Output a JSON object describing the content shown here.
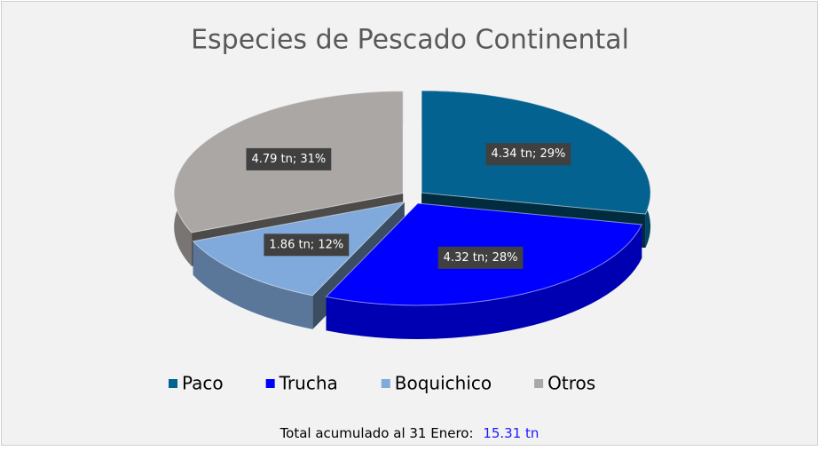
{
  "chart_data": {
    "type": "pie",
    "title": "Especies de Pescado Continental",
    "categories": [
      "Paco",
      "Trucha",
      "Boquichico",
      "Otros"
    ],
    "values": [
      4.34,
      4.32,
      1.86,
      4.79
    ],
    "value_labels": [
      "4.34 tn; 29%",
      "4.32 tn; 28%",
      "1.86 tn; 12%",
      "4.79 tn; 31%"
    ],
    "colors": [
      "#03628f",
      "#0000ff",
      "#80aadc",
      "#aba7a5"
    ],
    "legend": "bottom",
    "footer": {
      "text": "Total acumulado al 31 Enero:",
      "total": "15.31 tn"
    }
  }
}
